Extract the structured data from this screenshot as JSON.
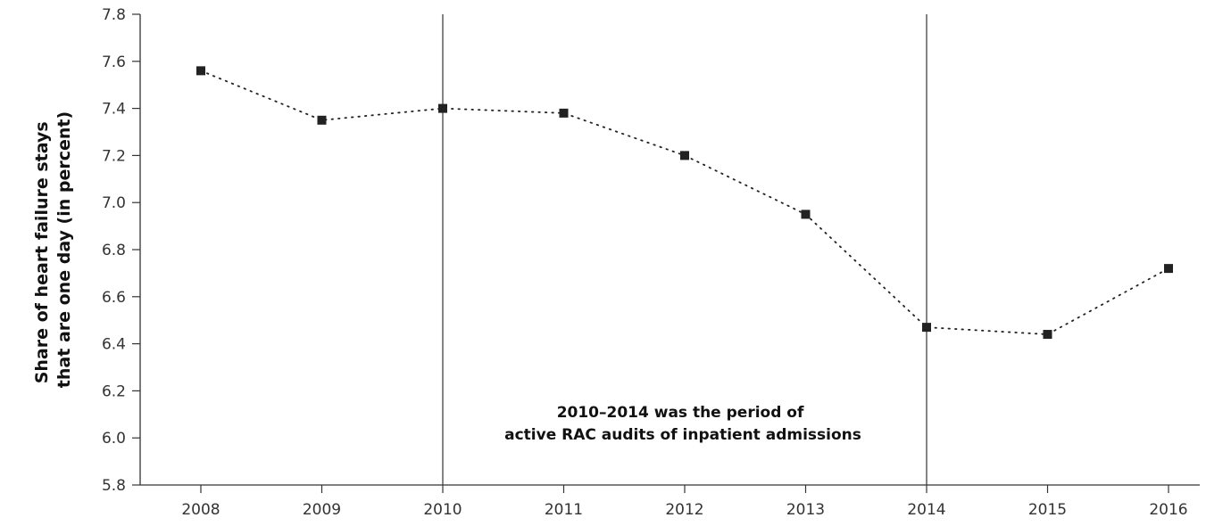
{
  "chart_data": {
    "type": "line",
    "title": "",
    "xlabel": "",
    "ylabel_lines": [
      "Share of heart failure stays",
      "that are one day (in percent)"
    ],
    "x": [
      "2008",
      "2009",
      "2010",
      "2011",
      "2012",
      "2013",
      "2014",
      "2015",
      "2016"
    ],
    "series": [
      {
        "values": [
          7.56,
          7.35,
          7.4,
          7.38,
          7.2,
          6.95,
          6.47,
          6.44,
          6.72
        ]
      }
    ],
    "ylim": [
      5.8,
      7.8
    ],
    "y_ticks": [
      "5.8",
      "6.0",
      "6.2",
      "6.4",
      "6.6",
      "6.8",
      "7.0",
      "7.2",
      "7.4",
      "7.6",
      "7.8"
    ],
    "reference_lines_x": [
      "2010",
      "2014"
    ],
    "annotation_lines": [
      "2010–2014 was the period of",
      "active RAC audits of inpatient admissions"
    ],
    "line_style": "dotted",
    "marker": "square",
    "grid": false,
    "legend": "none",
    "colors": {
      "line": "#222222",
      "marker": "#222222",
      "axis": "#333333"
    }
  }
}
